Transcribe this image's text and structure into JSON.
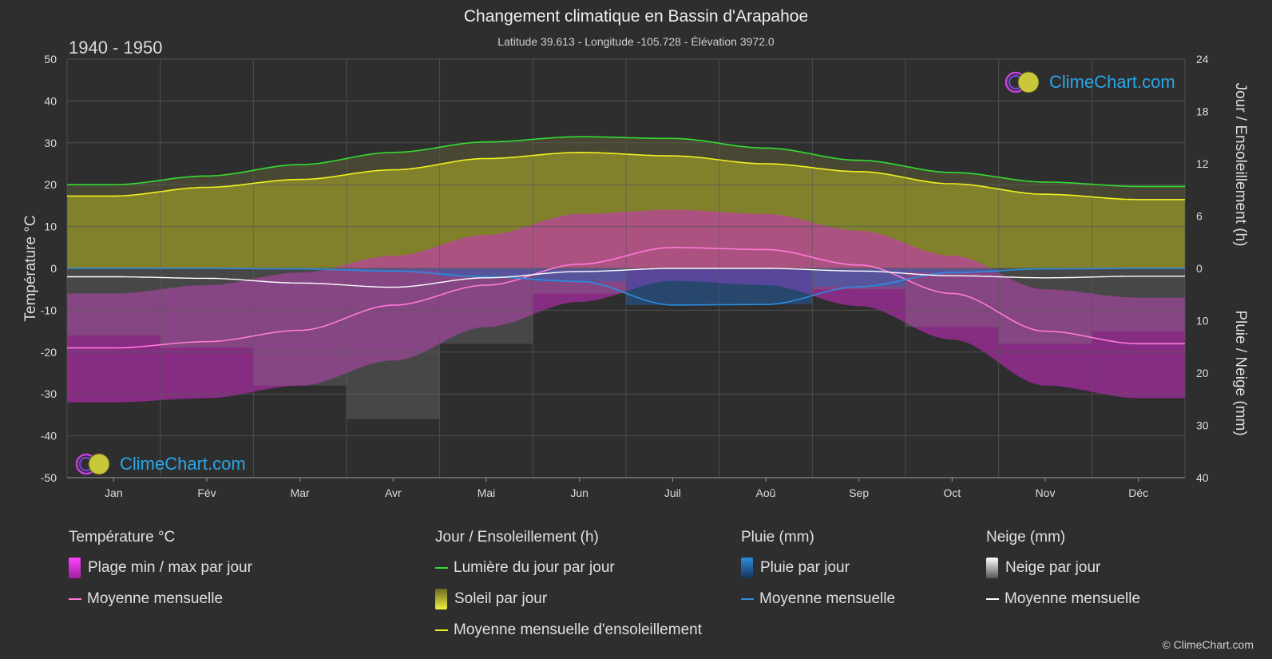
{
  "header": {
    "title": "Changement climatique en Bassin d'Arapahoe",
    "subtitle": "Latitude 39.613 - Longitude -105.728 - Élévation 3972.0",
    "period": "1940 - 1950"
  },
  "logo": {
    "text": "ClimeChart.com"
  },
  "copyright": "© ClimeChart.com",
  "colors": {
    "background": "#2e2e2e",
    "grid": "#5a5a5a",
    "daylight": "#33dd33",
    "sunshine_fill": "#8c8c2c",
    "sunshine_line": "#f0f020",
    "temp_range": "#d02cc8",
    "temp_line": "#ff7ad8",
    "rain_fill": "#2266bb",
    "rain_line": "#2a8de0",
    "snow_fill": "#8a8a8a",
    "snow_line": "#ffffff",
    "warm_range": "#e06090"
  },
  "legend": {
    "temperature": {
      "title": "Température °C",
      "range": "Plage min / max par jour",
      "mean": "Moyenne mensuelle"
    },
    "sun": {
      "title": "Jour / Ensoleillement (h)",
      "daylight": "Lumière du jour par jour",
      "sunshine": "Soleil par jour",
      "mean": "Moyenne mensuelle d'ensoleillement"
    },
    "rain": {
      "title": "Pluie (mm)",
      "daily": "Pluie par jour",
      "mean": "Moyenne mensuelle"
    },
    "snow": {
      "title": "Neige (mm)",
      "daily": "Neige par jour",
      "mean": "Moyenne mensuelle"
    }
  },
  "chart_data": {
    "type": "area",
    "categories": [
      "Jan",
      "Fév",
      "Mar",
      "Avr",
      "Mai",
      "Jun",
      "Juil",
      "Aoû",
      "Sep",
      "Oct",
      "Nov",
      "Déc"
    ],
    "y_left": {
      "label": "Température °C",
      "min": -50,
      "max": 50,
      "ticks": [
        50,
        40,
        30,
        20,
        10,
        0,
        -10,
        -20,
        -30,
        -40,
        -50
      ]
    },
    "y_right_top": {
      "label": "Jour / Ensoleillement (h)",
      "min": 0,
      "max": 24,
      "ticks": [
        24,
        18,
        12,
        6,
        0
      ]
    },
    "y_right_bottom": {
      "label": "Pluie / Neige (mm)",
      "min": 0,
      "max": 40,
      "ticks": [
        0,
        10,
        20,
        30,
        40
      ]
    },
    "grid": true,
    "series": [
      {
        "name": "Lumière du jour par jour",
        "axis": "hours",
        "values": [
          9.6,
          10.6,
          11.9,
          13.3,
          14.5,
          15.1,
          14.9,
          13.8,
          12.4,
          11.0,
          9.9,
          9.4
        ]
      },
      {
        "name": "Moyenne mensuelle d'ensoleillement",
        "axis": "hours",
        "values": [
          8.3,
          9.3,
          10.2,
          11.3,
          12.6,
          13.3,
          12.9,
          12.0,
          11.1,
          9.7,
          8.5,
          7.9
        ]
      },
      {
        "name": "Moyenne mensuelle",
        "group": "temperature",
        "axis": "temp",
        "values": [
          -19,
          -17.5,
          -14.8,
          -8.8,
          -4.0,
          1.0,
          5.0,
          4.5,
          0.8,
          -6.0,
          -15.0,
          -18.0
        ]
      },
      {
        "name": "Moyenne mensuelle",
        "group": "rain",
        "axis": "mm",
        "values": [
          0.0,
          0.0,
          0.1,
          0.5,
          1.6,
          2.5,
          7.0,
          6.9,
          3.5,
          0.8,
          0.1,
          0.0
        ]
      },
      {
        "name": "Moyenne mensuelle",
        "group": "snow",
        "axis": "mm",
        "values": [
          1.6,
          1.9,
          2.8,
          3.6,
          1.8,
          0.6,
          0.0,
          0.0,
          0.5,
          1.4,
          1.8,
          1.5
        ]
      }
    ],
    "temperature_range": {
      "max": [
        -6,
        -4,
        -1,
        3,
        8,
        13,
        14,
        13,
        9,
        3,
        -5,
        -7
      ],
      "min": [
        -32,
        -31,
        -28,
        -22,
        -14,
        -8,
        -3,
        -4,
        -9,
        -17,
        -28,
        -31
      ]
    }
  }
}
